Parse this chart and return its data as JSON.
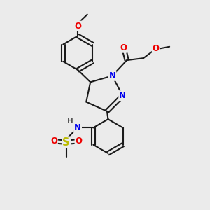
{
  "bg_color": "#ebebeb",
  "bond_color": "#1a1a1a",
  "bond_width": 1.5,
  "atom_colors": {
    "N": "#0000ee",
    "O": "#ee0000",
    "S": "#bbbb00",
    "C": "#1a1a1a",
    "H": "#555555"
  },
  "font_size": 8.5,
  "fig_size": [
    3.0,
    3.0
  ],
  "dpi": 100
}
